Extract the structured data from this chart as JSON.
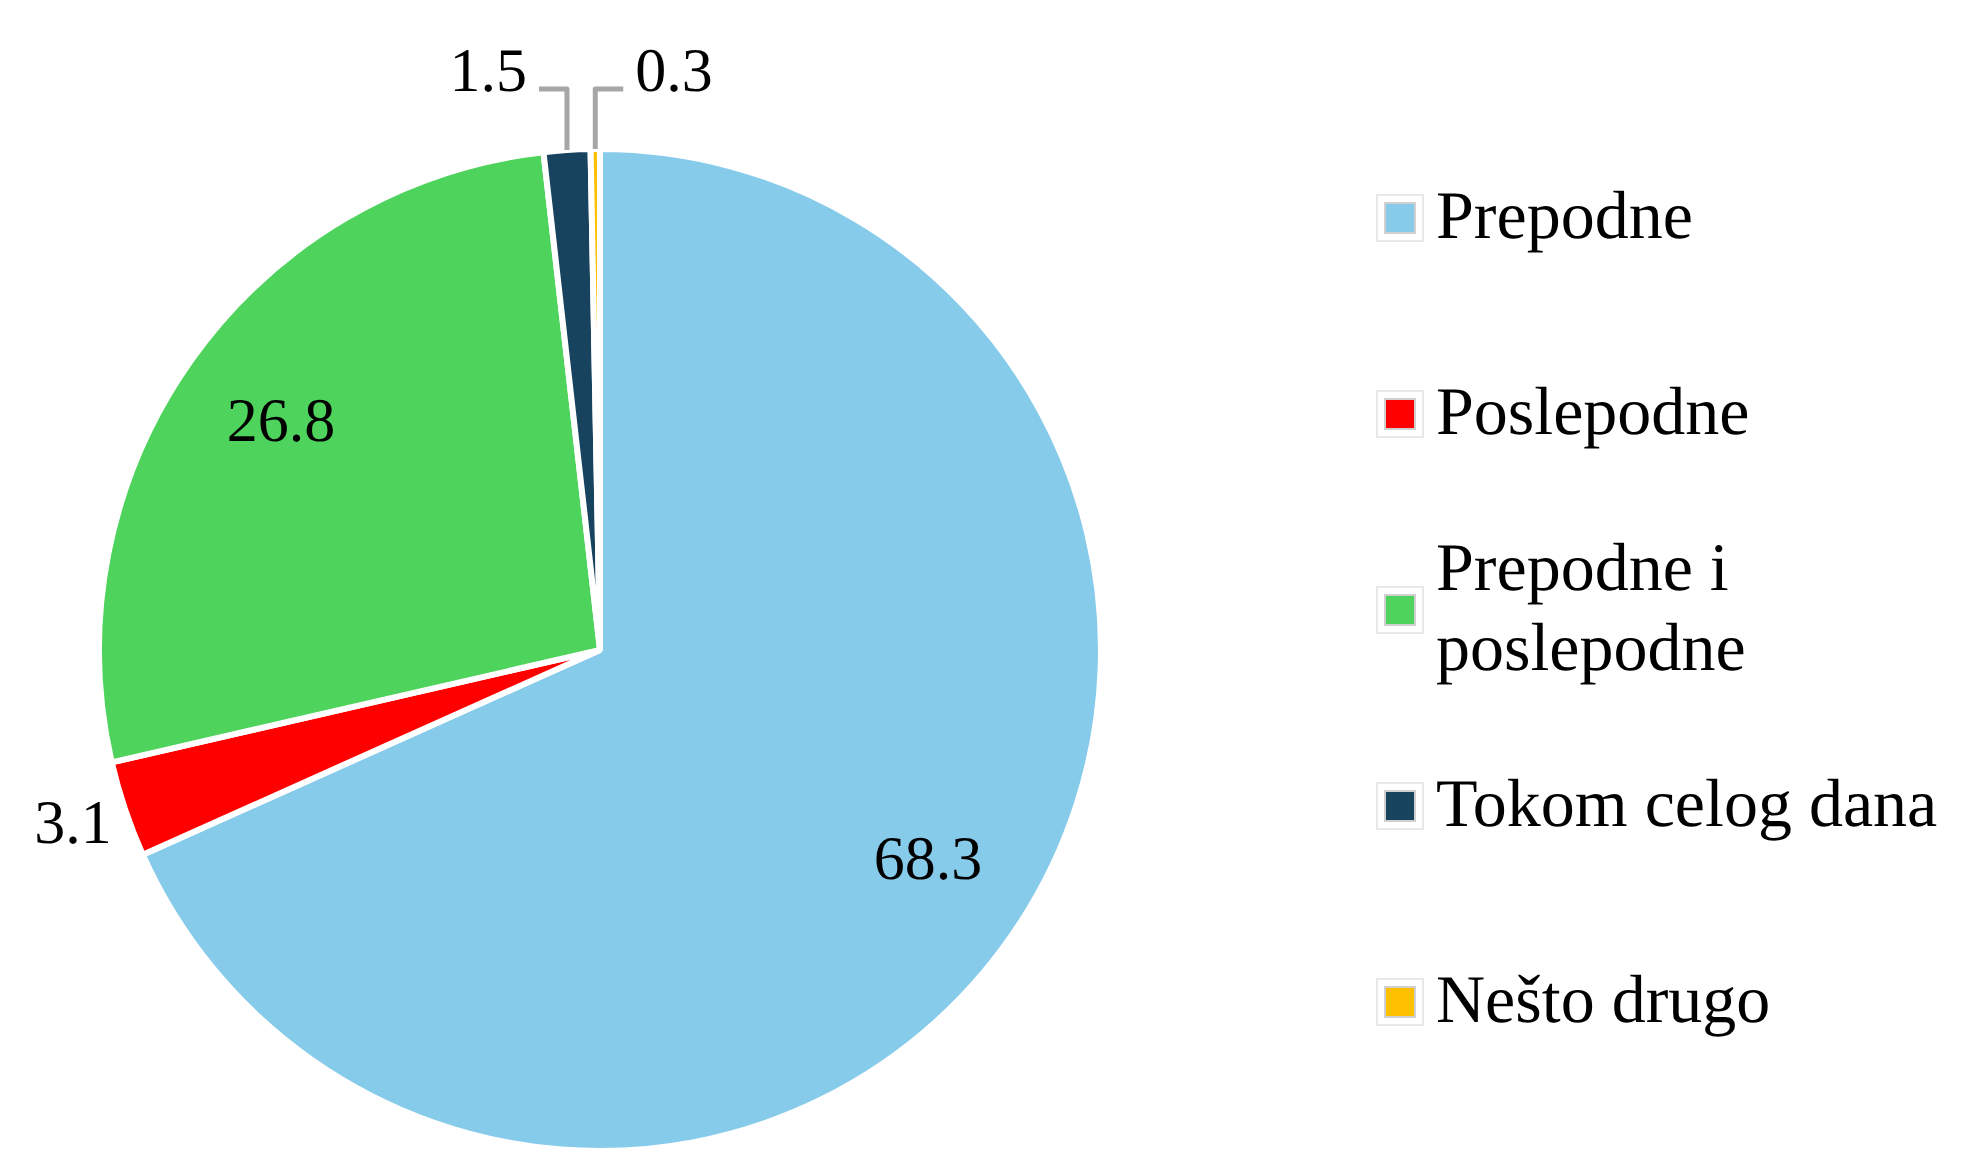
{
  "chart_data": {
    "type": "pie",
    "categories": [
      "Prepodne",
      "Poslepodne",
      "Prepodne i poslepodne",
      "Tokom celog dana",
      "Nešto drugo"
    ],
    "values": [
      68.3,
      3.1,
      26.8,
      1.5,
      0.3
    ],
    "colors": [
      "#87cbeb",
      "#ff0000",
      "#4ed35c",
      "#17435e",
      "#ffc000"
    ],
    "data_labels": true,
    "legend": "right"
  }
}
